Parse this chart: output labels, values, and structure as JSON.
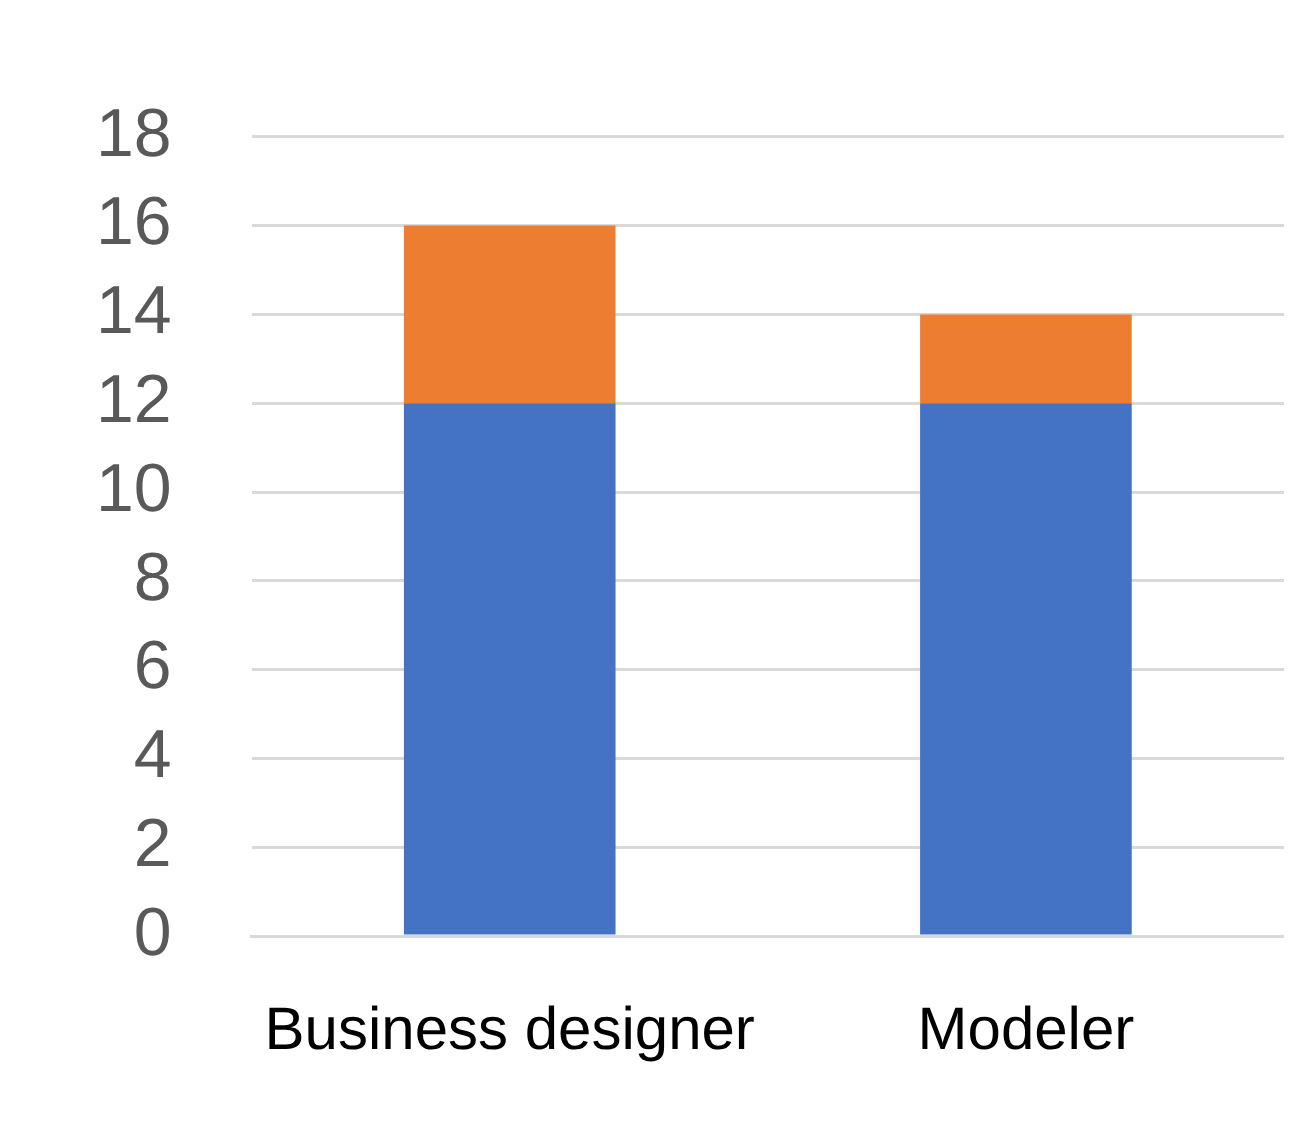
{
  "chart_data": {
    "type": "bar",
    "categories": [
      "Business designer",
      "Modeler"
    ],
    "stacked": true,
    "series": [
      {
        "color": "#4472c4",
        "values": [
          12,
          12
        ]
      },
      {
        "color": "#ed7d31",
        "values": [
          4,
          2
        ]
      }
    ],
    "ylim": [
      0,
      18
    ],
    "yticks": [
      0,
      2,
      4,
      6,
      8,
      10,
      12,
      14,
      16,
      18
    ],
    "grid": "y",
    "legend": false
  }
}
